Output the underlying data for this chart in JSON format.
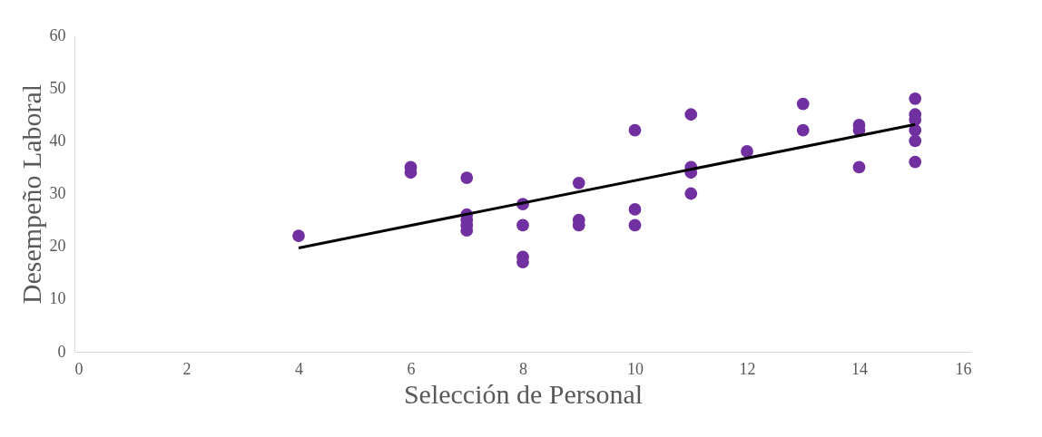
{
  "chart_data": {
    "type": "scatter",
    "xlabel": "Selección de Personal",
    "ylabel": "Desempeño Laboral",
    "xlim": [
      0,
      16
    ],
    "xticks": [
      0,
      2,
      4,
      6,
      8,
      10,
      12,
      14,
      16
    ],
    "ylim": [
      0,
      60
    ],
    "yticks": [
      0,
      10,
      20,
      30,
      40,
      50,
      60
    ],
    "grid": false,
    "series": [
      {
        "marker": "circle",
        "color": "#7030a0",
        "x": [
          4,
          6,
          6,
          7,
          7,
          7,
          7,
          7,
          8,
          8,
          8,
          8,
          9,
          9,
          9,
          10,
          10,
          10,
          11,
          11,
          11,
          11,
          12,
          13,
          13,
          14,
          14,
          14,
          15,
          15,
          15,
          15,
          15,
          15
        ],
        "values": [
          22,
          35,
          34,
          33,
          26,
          25,
          24,
          23,
          28,
          24,
          18,
          17,
          32,
          25,
          24,
          42,
          27,
          24,
          45,
          35,
          34,
          30,
          38,
          47,
          42,
          43,
          42,
          35,
          48,
          45,
          44,
          42,
          40,
          36
        ]
      },
      {
        "type": "line",
        "color": "#000000",
        "x": [
          4,
          15
        ],
        "values": [
          19.7,
          43.1
        ],
        "line_style": "solid"
      }
    ]
  }
}
